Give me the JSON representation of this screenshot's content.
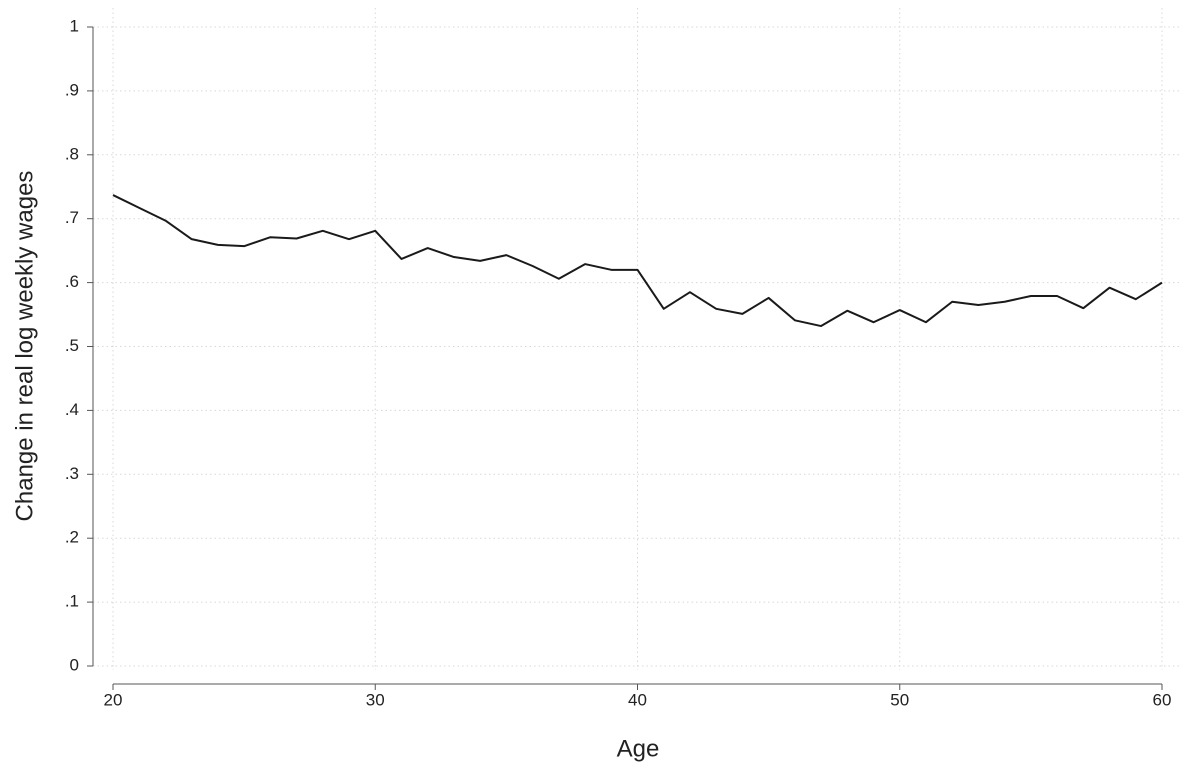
{
  "chart_data": {
    "type": "line",
    "xlabel": "Age",
    "ylabel": "Change in real log weekly wages",
    "x": [
      20,
      21,
      22,
      23,
      24,
      25,
      26,
      27,
      28,
      29,
      30,
      31,
      32,
      33,
      34,
      35,
      36,
      37,
      38,
      39,
      40,
      41,
      42,
      43,
      44,
      45,
      46,
      47,
      48,
      49,
      50,
      51,
      52,
      53,
      54,
      55,
      56,
      57,
      58,
      59,
      60
    ],
    "values": [
      0.737,
      0.717,
      0.697,
      0.668,
      0.659,
      0.657,
      0.671,
      0.669,
      0.681,
      0.668,
      0.681,
      0.637,
      0.654,
      0.64,
      0.634,
      0.643,
      0.626,
      0.606,
      0.629,
      0.62,
      0.62,
      0.559,
      0.585,
      0.559,
      0.551,
      0.576,
      0.541,
      0.532,
      0.556,
      0.538,
      0.557,
      0.538,
      0.57,
      0.565,
      0.57,
      0.579,
      0.579,
      0.56,
      0.592,
      0.574,
      0.6
    ],
    "color": "#1a1a1a",
    "xlim": [
      20,
      60
    ],
    "xticks": [
      20,
      30,
      40,
      50,
      60
    ],
    "ylim": [
      0,
      1
    ],
    "yticks": [
      0,
      {
        "value": 0.1,
        "label": ".1"
      },
      {
        "value": 0.2,
        "label": ".2"
      },
      {
        "value": 0.3,
        "label": ".3"
      },
      {
        "value": 0.4,
        "label": ".4"
      },
      {
        "value": 0.5,
        "label": ".5"
      },
      {
        "value": 0.6,
        "label": ".6"
      },
      {
        "value": 0.7,
        "label": ".7"
      },
      {
        "value": 0.8,
        "label": ".8"
      },
      {
        "value": 0.9,
        "label": ".9"
      },
      1
    ],
    "grid": true
  }
}
